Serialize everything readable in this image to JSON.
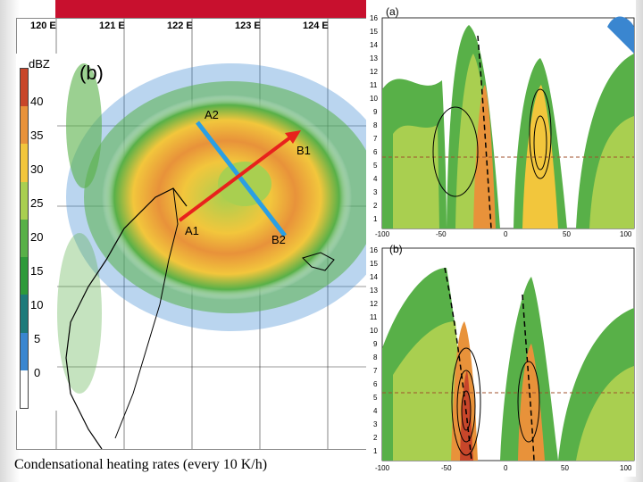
{
  "caption": "Condensational heating rates (every 10 K/h)",
  "radar": {
    "panel_label": "(b)",
    "colorbar_unit": "dBZ",
    "colorbar_ticks": [
      "40",
      "35",
      "30",
      "25",
      "20",
      "15",
      "10",
      "5",
      "0"
    ],
    "colorbar_colors": [
      "#c8462a",
      "#e8923a",
      "#f2c63c",
      "#a9cf50",
      "#58b048",
      "#2e9a3a",
      "#1e7a7a",
      "#3a86d0",
      "#ffffff"
    ],
    "longitudes": [
      "120 E",
      "121 E",
      "122 E",
      "123 E",
      "124 E"
    ],
    "lines": {
      "a_start": "A1",
      "a_end": "A2",
      "b_start": "B1",
      "b_end": "B2"
    }
  },
  "cross_sections": {
    "top": {
      "label": "(a)",
      "y_ticks": [
        "16",
        "15",
        "14",
        "13",
        "12",
        "11",
        "10",
        "9",
        "8",
        "7",
        "6",
        "5",
        "4",
        "3",
        "2",
        "1"
      ],
      "x_ticks": [
        "-100",
        "-50",
        "0",
        "50",
        "100"
      ]
    },
    "bottom": {
      "label": "(b)",
      "y_ticks": [
        "16",
        "15",
        "14",
        "13",
        "12",
        "11",
        "10",
        "9",
        "8",
        "7",
        "6",
        "5",
        "4",
        "3",
        "2",
        "1"
      ],
      "x_ticks": [
        "-100",
        "-50",
        "0",
        "50",
        "100"
      ]
    }
  }
}
